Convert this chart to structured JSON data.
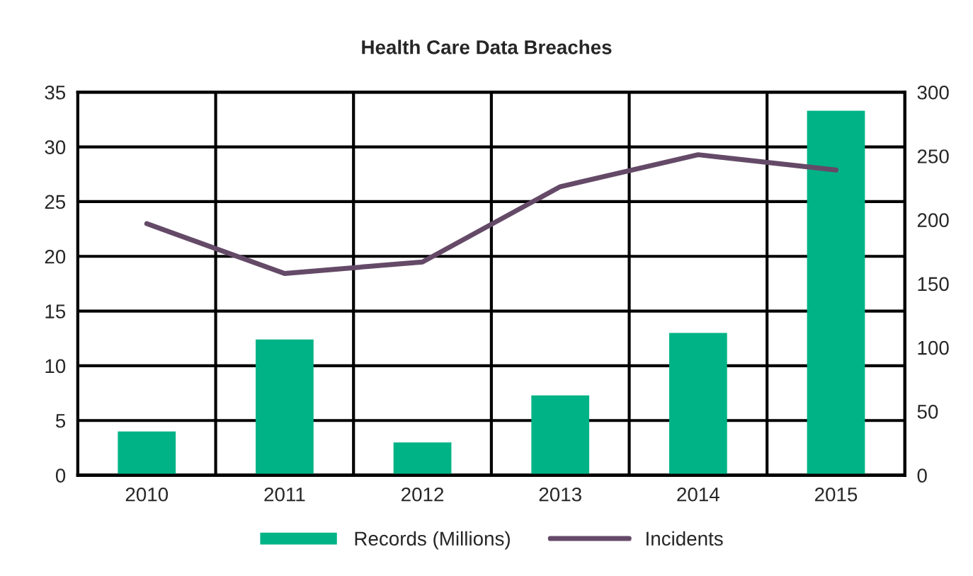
{
  "chart_data": {
    "type": "bar",
    "title": "Health Care Data Breaches",
    "categories": [
      "2010",
      "2011",
      "2012",
      "2013",
      "2014",
      "2015"
    ],
    "series": [
      {
        "name": "Records (Millions)",
        "color": "#00b386",
        "values": [
          4.0,
          12.4,
          3.0,
          7.3,
          13.0,
          33.3
        ]
      },
      {
        "name": "Incidents",
        "type": "line",
        "axis": "y2",
        "color": "#654a68",
        "values": [
          197,
          158,
          167,
          226,
          251,
          239
        ]
      }
    ],
    "ylim": [
      0,
      35
    ],
    "yticks": [
      0,
      5,
      10,
      15,
      20,
      25,
      30,
      35
    ],
    "y2lim": [
      0,
      300
    ],
    "y2ticks": [
      0,
      50,
      100,
      150,
      200,
      250,
      300
    ],
    "grid": true,
    "legend": "bottom",
    "marker": "none",
    "line_style": "solid"
  }
}
